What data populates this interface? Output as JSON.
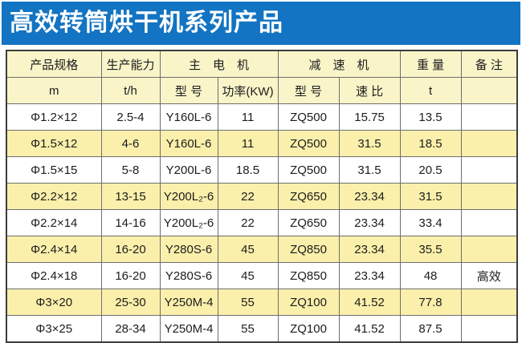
{
  "title": "高效转筒烘干机系列产品",
  "colors": {
    "title_bar_bg": "#1274c2",
    "title_text": "#ffffff",
    "header_bg": "#f9f5c9",
    "row_alt_bg": "#faf0ab",
    "row_bg": "#ffffff",
    "outer_border": "#3c3c3c",
    "inner_border": "#6e6e6e",
    "cell_text": "#1c1c1c"
  },
  "table": {
    "header_groups": [
      {
        "label": "产品规格",
        "colspan": 1
      },
      {
        "label": "生产能力",
        "colspan": 1
      },
      {
        "label": "主　电　机",
        "colspan": 2
      },
      {
        "label": "减　速　机",
        "colspan": 2
      },
      {
        "label": "重 量",
        "colspan": 1
      },
      {
        "label": "备 注",
        "colspan": 1
      }
    ],
    "sub_headers": [
      "m",
      "t/h",
      "型 号",
      "功率(KW)",
      "型 号",
      "速 比",
      "t",
      ""
    ],
    "rows": [
      [
        "Φ1.2×12",
        "2.5-4",
        "Y160L-6",
        "11",
        "ZQ500",
        "15.75",
        "13.5",
        ""
      ],
      [
        "Φ1.5×12",
        "4-6",
        "Y160L-6",
        "11",
        "ZQ500",
        "31.5",
        "18.5",
        ""
      ],
      [
        "Φ1.5×15",
        "5-8",
        "Y200L-6",
        "18.5",
        "ZQ500",
        "31.5",
        "20.5",
        ""
      ],
      [
        "Φ2.2×12",
        "13-15",
        "Y200L₂-6",
        "22",
        "ZQ650",
        "23.34",
        "31.5",
        ""
      ],
      [
        "Φ2.2×14",
        "14-16",
        "Y200L₂-6",
        "22",
        "ZQ650",
        "23.34",
        "33.4",
        ""
      ],
      [
        "Φ2.4×14",
        "16-20",
        "Y280S-6",
        "45",
        "ZQ850",
        "23.34",
        "35.5",
        ""
      ],
      [
        "Φ2.4×18",
        "16-20",
        "Y280S-6",
        "45",
        "ZQ850",
        "23.34",
        "48",
        "高效"
      ],
      [
        "Φ3×20",
        "25-30",
        "Y250M-4",
        "55",
        "ZQ100",
        "41.52",
        "77.8",
        ""
      ],
      [
        "Φ3×25",
        "28-34",
        "Y250M-4",
        "55",
        "ZQ100",
        "41.52",
        "87.5",
        ""
      ]
    ]
  }
}
